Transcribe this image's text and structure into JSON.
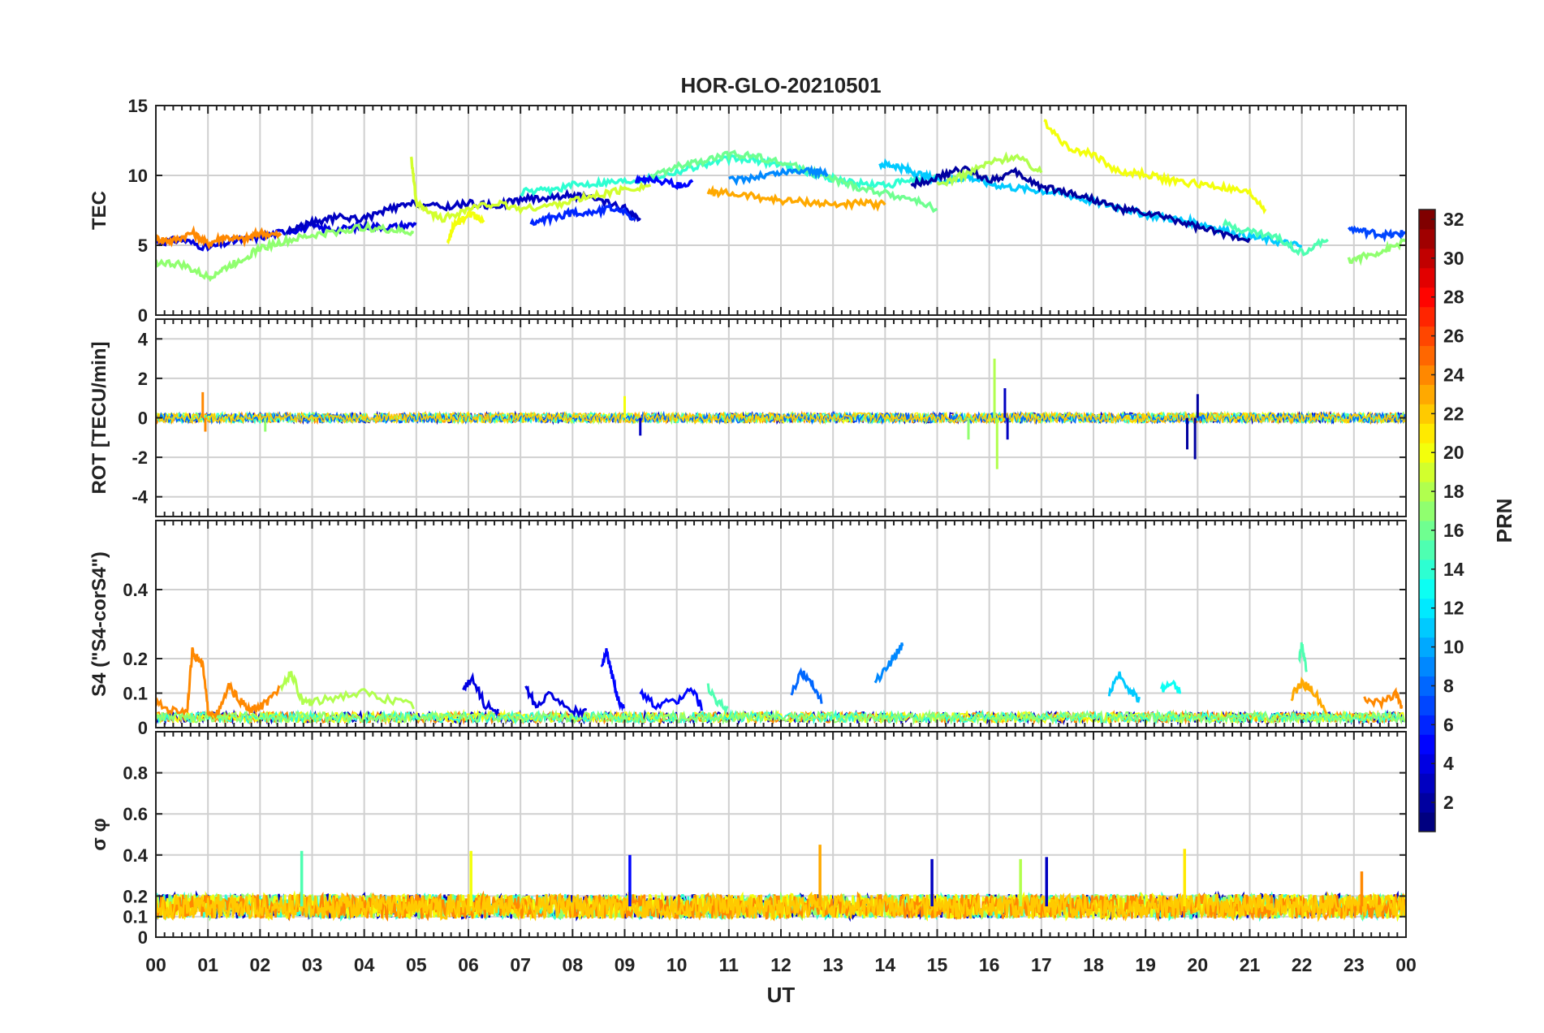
{
  "chart_data": {
    "type": "line",
    "title": "HOR-GLO-20210501",
    "xlabel": "UT",
    "x_ticks": [
      "00",
      "01",
      "02",
      "03",
      "04",
      "05",
      "06",
      "07",
      "08",
      "09",
      "10",
      "11",
      "12",
      "13",
      "14",
      "15",
      "16",
      "17",
      "18",
      "19",
      "20",
      "21",
      "22",
      "23",
      "00"
    ],
    "xlim": [
      0,
      24
    ],
    "grid": true,
    "panels": [
      {
        "id": "tec",
        "ylabel": "TEC",
        "ylim": [
          0,
          15
        ],
        "y_ticks": [
          0,
          5,
          10,
          15
        ],
        "series": [
          {
            "prn": 4,
            "x": [
              0,
              0.5,
              1,
              1.5,
              2,
              2.5,
              3,
              3.5,
              4,
              4.5,
              5
            ],
            "y": [
              5.2,
              5.4,
              4.8,
              5.3,
              5.6,
              6,
              6.3,
              6.1,
              6.4,
              6.3,
              6.5
            ]
          },
          {
            "prn": 24,
            "x": [
              0,
              0.3,
              0.7,
              1,
              1.3,
              1.7,
              2,
              2.4
            ],
            "y": [
              5.5,
              5.3,
              5.9,
              5.1,
              5.6,
              5.4,
              5.9,
              5.7
            ]
          },
          {
            "prn": 17,
            "x": [
              0,
              0.5,
              1,
              1.3,
              1.7,
              2,
              2.5,
              3,
              3.5,
              4,
              4.5,
              4.95
            ],
            "y": [
              3.8,
              3.6,
              2.7,
              3.3,
              4.1,
              4.8,
              5.3,
              5.7,
              6,
              6.3,
              6.1,
              5.9
            ]
          },
          {
            "prn": 3,
            "x": [
              2.5,
              3,
              3.5,
              4,
              4.5,
              5,
              5.5,
              6,
              6.5,
              7,
              7.5,
              8,
              8.5,
              9,
              9.3
            ],
            "y": [
              6,
              6.6,
              7,
              6.9,
              7.6,
              8,
              7.7,
              8,
              7.8,
              8.3,
              8.4,
              8.6,
              8.2,
              7.6,
              6.8
            ]
          },
          {
            "prn": 19,
            "x": [
              4.9,
              5,
              5.2,
              5.5,
              6,
              6.5,
              7,
              7.5,
              8,
              8.5,
              9,
              9.5
            ],
            "y": [
              11.5,
              8,
              7.4,
              6.9,
              7.6,
              8,
              7.6,
              7.8,
              8.2,
              8.6,
              9,
              9.3
            ]
          },
          {
            "prn": 20,
            "x": [
              5.6,
              5.7,
              6,
              6.3
            ],
            "y": [
              5,
              6.3,
              7.2,
              6.8
            ]
          },
          {
            "prn": 6,
            "x": [
              7.2,
              7.6,
              8,
              8.4,
              8.8,
              9.2
            ],
            "y": [
              6.5,
              7,
              7.3,
              7.4,
              7.7,
              6.9
            ]
          },
          {
            "prn": 14,
            "x": [
              7,
              7.5,
              8,
              8.5,
              9,
              9.5,
              10,
              10.5,
              11,
              11.5,
              12,
              12.5,
              13,
              13.5,
              14,
              14.5,
              15
            ],
            "y": [
              8.8,
              8.9,
              9.3,
              9.5,
              9.6,
              9.8,
              10.3,
              10.8,
              11.2,
              11.1,
              10.8,
              10.2,
              9.8,
              9.4,
              9.3,
              9.6,
              10
            ]
          },
          {
            "prn": 16,
            "x": [
              9.5,
              10,
              10.5,
              11,
              11.5,
              12,
              12.5,
              13,
              13.5,
              14,
              14.5,
              15
            ],
            "y": [
              9.9,
              10.6,
              11,
              11.5,
              11.4,
              10.9,
              10.4,
              9.7,
              9.1,
              8.7,
              8.3,
              7.6
            ]
          },
          {
            "prn": 5,
            "x": [
              9.2,
              9.5,
              10,
              10.3
            ],
            "y": [
              9.5,
              9.8,
              9.3,
              9.5
            ]
          },
          {
            "prn": 23,
            "x": [
              10.6,
              11,
              11.5,
              12,
              12.5,
              13,
              13.5,
              14
            ],
            "y": [
              8.8,
              8.7,
              8.5,
              8.2,
              8.1,
              7.9,
              8,
              7.9
            ]
          },
          {
            "prn": 9,
            "x": [
              11,
              11.5,
              12,
              12.5,
              12.9
            ],
            "y": [
              9.6,
              9.9,
              10.2,
              10.4,
              10.1
            ]
          },
          {
            "prn": 11,
            "x": [
              13.9,
              14.2,
              14.5,
              14.8,
              15.2,
              15.6,
              16,
              16.5,
              17,
              17.5,
              18,
              18.5,
              19,
              19.5,
              20,
              20.5,
              21,
              21.5,
              22
            ],
            "y": [
              10.8,
              10.7,
              10.3,
              9.9,
              9.6,
              9.9,
              9.4,
              9.1,
              8.9,
              8.6,
              8.1,
              7.7,
              7.2,
              6.9,
              6.6,
              6.1,
              5.6,
              5.3,
              4.9
            ]
          },
          {
            "prn": 2,
            "x": [
              14.5,
              15,
              15.5,
              16,
              16.5,
              17,
              17.5,
              18,
              18.5,
              19,
              19.5,
              20,
              20.5,
              21
            ],
            "y": [
              9.4,
              9.8,
              10.5,
              9.7,
              10.2,
              9.2,
              8.8,
              8.3,
              7.6,
              7.3,
              6.9,
              6.3,
              5.8,
              5.5
            ]
          },
          {
            "prn": 18,
            "x": [
              15,
              15.5,
              16,
              16.5,
              17
            ],
            "y": [
              9.3,
              10,
              10.9,
              11.4,
              10.2
            ]
          },
          {
            "prn": 20,
            "x": [
              17.05,
              17.5,
              18,
              18.5,
              19,
              19.5,
              20,
              20.5,
              21,
              21.3
            ],
            "y": [
              13.9,
              12,
              11.5,
              10.2,
              10.1,
              9.6,
              9.4,
              9.1,
              8.7,
              7.6
            ]
          },
          {
            "prn": 15,
            "x": [
              20.5,
              21,
              21.5,
              22,
              22.5
            ],
            "y": [
              6.5,
              6,
              5.6,
              4.5,
              5.4
            ]
          },
          {
            "prn": 17,
            "x": [
              22.9,
              23.3,
              23.7,
              24
            ],
            "y": [
              3.9,
              4.3,
              4.8,
              5.3
            ]
          },
          {
            "prn": 7,
            "x": [
              22.9,
              23.3,
              23.7,
              24
            ],
            "y": [
              6.2,
              5.9,
              5.7,
              5.9
            ]
          }
        ]
      },
      {
        "id": "rot",
        "ylabel": "ROT [TECU/min]",
        "ylim": [
          -5,
          5
        ],
        "y_ticks": [
          -4,
          -2,
          0,
          2,
          4
        ],
        "spikes": [
          {
            "prn": 24,
            "x": 0.9,
            "y": 1.3
          },
          {
            "prn": 24,
            "x": 0.95,
            "y": -0.7
          },
          {
            "prn": 17,
            "x": 2.1,
            "y": -0.7
          },
          {
            "prn": 3,
            "x": 9.3,
            "y": -0.9
          },
          {
            "prn": 20,
            "x": 9.0,
            "y": 1.1
          },
          {
            "prn": 17,
            "x": 15.6,
            "y": -1.1
          },
          {
            "prn": 18,
            "x": 16.1,
            "y": 3.0
          },
          {
            "prn": 18,
            "x": 16.15,
            "y": -2.6
          },
          {
            "prn": 3,
            "x": 16.3,
            "y": 1.5
          },
          {
            "prn": 3,
            "x": 16.35,
            "y": -1.1
          },
          {
            "prn": 2,
            "x": 19.95,
            "y": -2.1
          },
          {
            "prn": 2,
            "x": 20.0,
            "y": 1.2
          },
          {
            "prn": 2,
            "x": 19.8,
            "y": -1.6
          }
        ]
      },
      {
        "id": "s4",
        "ylabel": "S4 (\"S4-corS4\")",
        "ylim": [
          0,
          0.6
        ],
        "y_ticks": [
          0,
          0.1,
          0.2,
          0.4
        ],
        "bursts": [
          {
            "prn": 24,
            "x": [
              0,
              0.3,
              0.6,
              0.7,
              0.8,
              0.9,
              1,
              1.2,
              1.4,
              1.6,
              1.8,
              2,
              2.2,
              2.4
            ],
            "y": [
              0.07,
              0.05,
              0.05,
              0.22,
              0.2,
              0.18,
              0.05,
              0.04,
              0.12,
              0.08,
              0.05,
              0.06,
              0.08,
              0.12
            ]
          },
          {
            "prn": 18,
            "x": [
              2.4,
              2.6,
              2.8,
              3,
              3.5,
              4,
              4.5,
              5
            ],
            "y": [
              0.12,
              0.16,
              0.08,
              0.07,
              0.09,
              0.1,
              0.08,
              0.06
            ]
          },
          {
            "prn": 4,
            "x": [
              5.9,
              6.1,
              6.3,
              6.6
            ],
            "y": [
              0.12,
              0.14,
              0.07,
              0.04
            ]
          },
          {
            "prn": 4,
            "x": [
              7.1,
              7.3,
              7.6,
              8,
              8.3
            ],
            "y": [
              0.12,
              0.06,
              0.1,
              0.05,
              0.04
            ]
          },
          {
            "prn": 5,
            "x": [
              8.55,
              8.65,
              8.75,
              8.85,
              9
            ],
            "y": [
              0.17,
              0.22,
              0.16,
              0.09,
              0.05
            ]
          },
          {
            "prn": 5,
            "x": [
              9.3,
              9.6,
              10,
              10.3,
              10.5
            ],
            "y": [
              0.1,
              0.06,
              0.08,
              0.11,
              0.05
            ]
          },
          {
            "prn": 15,
            "x": [
              10.6,
              10.8,
              11
            ],
            "y": [
              0.12,
              0.07,
              0.05
            ]
          },
          {
            "prn": 8,
            "x": [
              12.2,
              12.4,
              12.6,
              12.8
            ],
            "y": [
              0.1,
              0.16,
              0.13,
              0.07
            ]
          },
          {
            "prn": 9,
            "x": [
              13.8,
              14,
              14.2,
              14.35
            ],
            "y": [
              0.13,
              0.17,
              0.21,
              0.24
            ]
          },
          {
            "prn": 11,
            "x": [
              18.3,
              18.5,
              18.7,
              18.9
            ],
            "y": [
              0.1,
              0.15,
              0.11,
              0.08
            ]
          },
          {
            "prn": 13,
            "x": [
              19.3,
              19.5,
              19.7
            ],
            "y": [
              0.11,
              0.13,
              0.1
            ]
          },
          {
            "prn": 23,
            "x": [
              21.8,
              22,
              22.2,
              22.5
            ],
            "y": [
              0.09,
              0.13,
              0.11,
              0.04
            ]
          },
          {
            "prn": 15,
            "x": [
              21.95,
              22,
              22.1
            ],
            "y": [
              0.2,
              0.24,
              0.16
            ]
          },
          {
            "prn": 24,
            "x": [
              23.2,
              23.5,
              23.8,
              23.95
            ],
            "y": [
              0.08,
              0.07,
              0.1,
              0.05
            ]
          }
        ]
      },
      {
        "id": "sigma",
        "ylabel": "σ φ",
        "ylim": [
          0,
          1
        ],
        "y_ticks": [
          0,
          0.1,
          0.2,
          0.4,
          0.6,
          0.8
        ],
        "baseline": 0.15,
        "spikes": [
          {
            "prn": 15,
            "x": 2.8,
            "y": 0.42
          },
          {
            "prn": 20,
            "x": 6.05,
            "y": 0.42
          },
          {
            "prn": 5,
            "x": 9.1,
            "y": 0.4
          },
          {
            "prn": 23,
            "x": 12.75,
            "y": 0.45
          },
          {
            "prn": 3,
            "x": 14.9,
            "y": 0.38
          },
          {
            "prn": 18,
            "x": 16.6,
            "y": 0.38
          },
          {
            "prn": 3,
            "x": 17.1,
            "y": 0.39
          },
          {
            "prn": 21,
            "x": 19.75,
            "y": 0.43
          },
          {
            "prn": 24,
            "x": 23.15,
            "y": 0.32
          }
        ]
      }
    ],
    "colorbar": {
      "label": "PRN",
      "range": [
        1,
        32
      ],
      "ticks": [
        2,
        4,
        6,
        8,
        10,
        12,
        14,
        16,
        18,
        20,
        22,
        24,
        26,
        28,
        30,
        32
      ],
      "colormap": "jet"
    }
  }
}
